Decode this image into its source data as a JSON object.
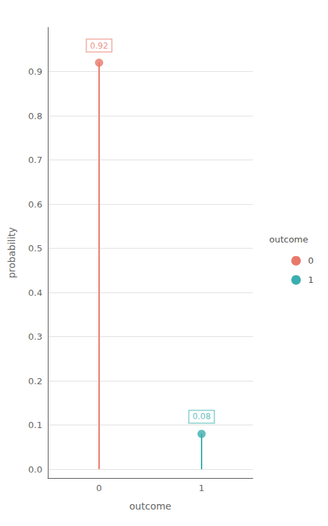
{
  "chart_data": {
    "type": "lollipop",
    "xlabel": "outcome",
    "ylabel": "probability",
    "categories": [
      "0",
      "1"
    ],
    "series": [
      {
        "name": "0",
        "color": "#E8796A",
        "values": [
          0.92,
          null
        ]
      },
      {
        "name": "1",
        "color": "#3BAEAF",
        "values": [
          null,
          0.08
        ]
      }
    ],
    "ylim": [
      -0.02,
      1.0
    ],
    "yticks": [
      {
        "value": 0.0,
        "label": "0.0"
      },
      {
        "value": 0.1,
        "label": "0.1"
      },
      {
        "value": 0.2,
        "label": "0.2"
      },
      {
        "value": 0.3,
        "label": "0.3"
      },
      {
        "value": 0.4,
        "label": "0.4"
      },
      {
        "value": 0.5,
        "label": "0.5"
      },
      {
        "value": 0.6,
        "label": "0.6"
      },
      {
        "value": 0.7,
        "label": "0.7"
      },
      {
        "value": 0.8,
        "label": "0.8"
      },
      {
        "value": 0.9,
        "label": "0.9"
      }
    ],
    "data_labels": true,
    "grid": true,
    "legend": "right",
    "legend_title": "outcome"
  }
}
